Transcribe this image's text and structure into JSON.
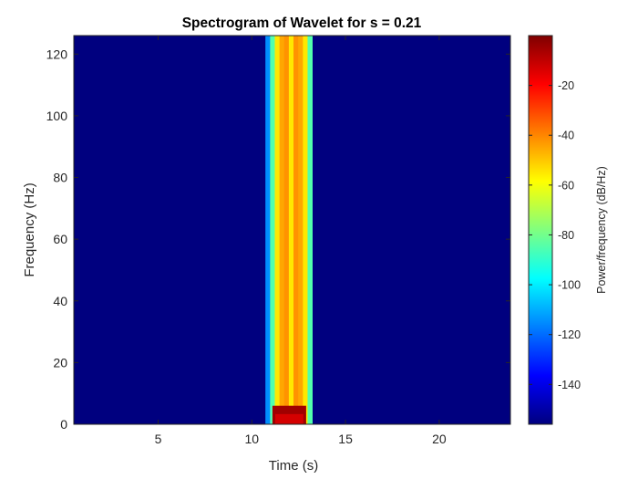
{
  "chart_data": {
    "type": "heatmap",
    "title": "Spectrogram of Wavelet for s = 0.21",
    "xlabel": "Time (s)",
    "ylabel": "Frequency (Hz)",
    "xlim": [
      0.5,
      23.8
    ],
    "ylim": [
      0,
      126
    ],
    "xticks": [
      5,
      10,
      15,
      20
    ],
    "yticks": [
      0,
      20,
      40,
      60,
      80,
      100,
      120
    ],
    "colormap": "jet",
    "background_color": "#00007f",
    "colorbar": {
      "label": "Power/frequency (dB/Hz)",
      "clim": [
        -156,
        0
      ],
      "ticks": [
        -20,
        -40,
        -60,
        -80,
        -100,
        -120,
        -140
      ]
    },
    "time_columns": {
      "t": [
        10.85,
        11.1,
        11.35,
        11.6,
        11.85,
        12.1,
        12.35,
        12.6,
        12.85,
        13.1
      ],
      "power_db": [
        -115,
        -85,
        -55,
        -45,
        -42,
        -55,
        -42,
        -45,
        -55,
        -85
      ]
    },
    "low_frequency_peak": {
      "t_range": [
        11.1,
        12.9
      ],
      "f_range": [
        0,
        6
      ],
      "power_db": -5
    }
  },
  "colors": {
    "axis": "#262626",
    "background": "#ffffff"
  }
}
